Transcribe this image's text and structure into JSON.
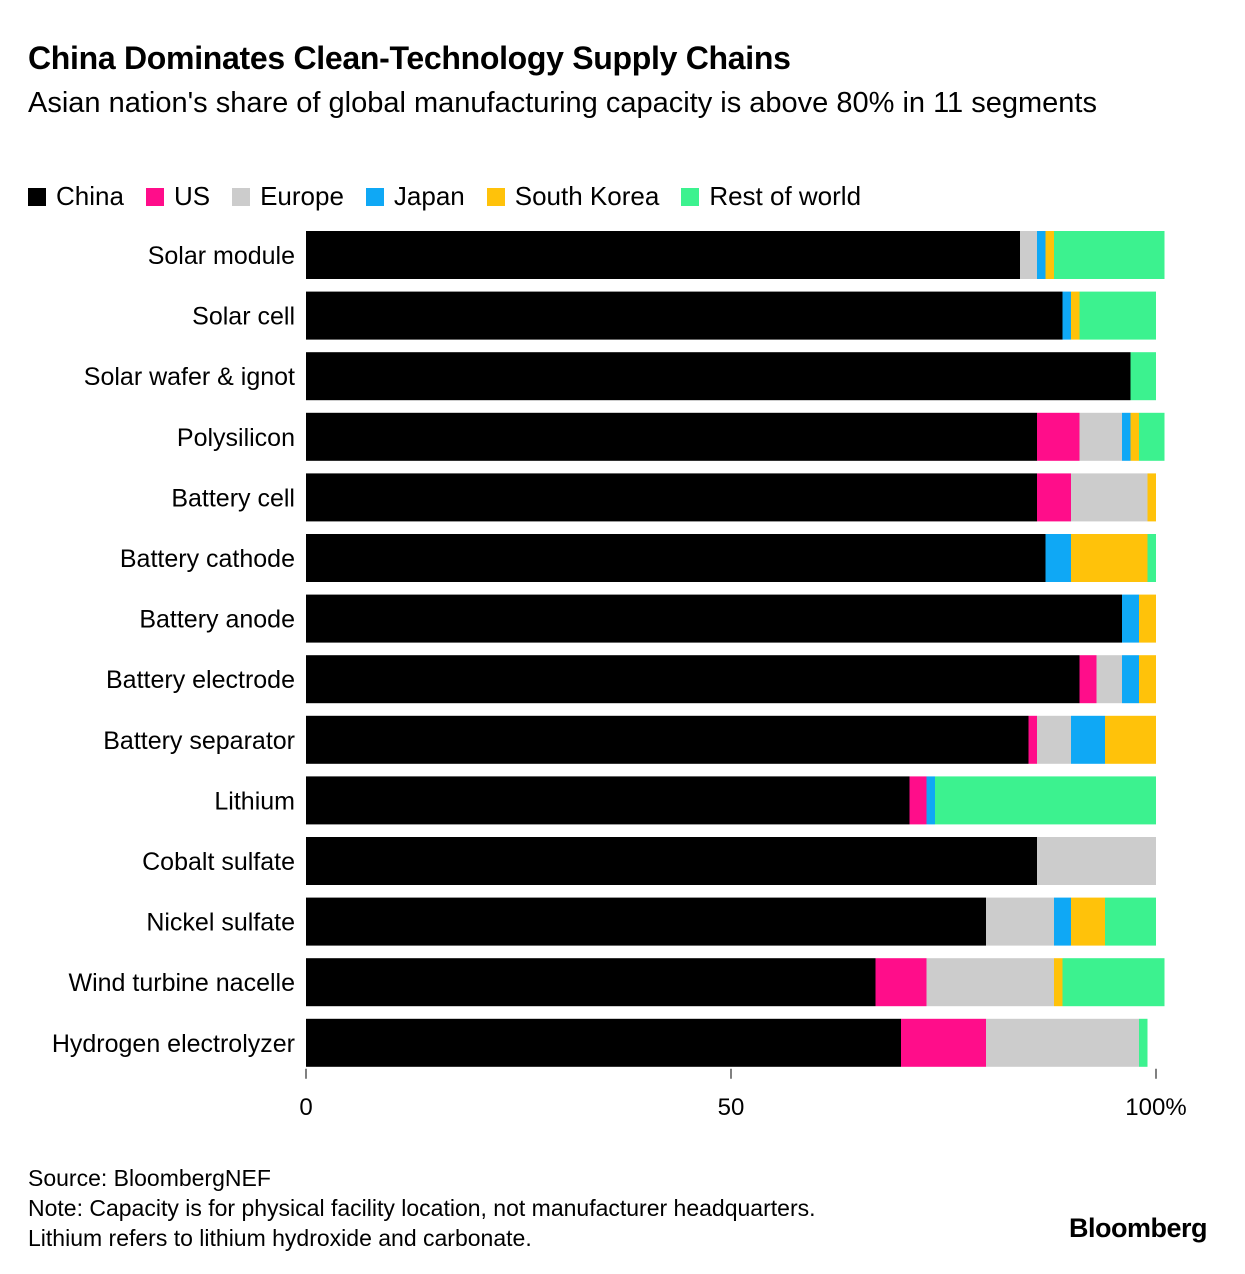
{
  "title": "China Dominates Clean-Technology Supply Chains",
  "subtitle": "Asian nation's share of global manufacturing capacity is above 80% in 11 segments",
  "colors": {
    "China": "#000000",
    "US": "#ff0d8a",
    "Europe": "#cccccc",
    "Japan": "#0fa8f5",
    "South Korea": "#ffc20a",
    "Rest of world": "#3cf28f"
  },
  "chart_data": {
    "type": "bar",
    "orientation": "horizontal",
    "stacked": true,
    "categories": [
      "Solar module",
      "Solar cell",
      "Solar wafer & ignot",
      "Polysilicon",
      "Battery cell",
      "Battery cathode",
      "Battery anode",
      "Battery electrode",
      "Battery separator",
      "Lithium",
      "Cobalt sulfate",
      "Nickel sulfate",
      "Wind turbine nacelle",
      "Hydrogen electrolyzer"
    ],
    "series": [
      {
        "name": "China",
        "values": [
          84,
          89,
          97,
          86,
          86,
          87,
          96,
          91,
          85,
          71,
          86,
          80,
          67,
          70
        ]
      },
      {
        "name": "US",
        "values": [
          0,
          0,
          0,
          5,
          4,
          0,
          0,
          2,
          1,
          2,
          0,
          0,
          6,
          10
        ]
      },
      {
        "name": "Europe",
        "values": [
          2,
          0,
          0,
          5,
          9,
          0,
          0,
          3,
          4,
          0,
          14,
          8,
          15,
          18
        ]
      },
      {
        "name": "Japan",
        "values": [
          1,
          1,
          0,
          1,
          0,
          3,
          2,
          2,
          4,
          1,
          0,
          2,
          0,
          0
        ]
      },
      {
        "name": "South Korea",
        "values": [
          1,
          1,
          0,
          1,
          1,
          9,
          2,
          2,
          6,
          0,
          0,
          4,
          1,
          0
        ]
      },
      {
        "name": "Rest of world",
        "values": [
          13,
          9,
          3,
          3,
          0,
          1,
          0,
          0,
          0,
          26,
          0,
          6,
          12,
          1
        ]
      }
    ],
    "xlim": [
      0,
      100
    ],
    "xticks": [
      {
        "value": 0,
        "label": "0"
      },
      {
        "value": 50,
        "label": "50"
      },
      {
        "value": 100,
        "label": "100%"
      }
    ],
    "legend_position": "top-left"
  },
  "footer": {
    "source": "Source: BloombergNEF",
    "note1": "Note: Capacity is for physical facility location, not manufacturer headquarters.",
    "note2": "Lithium refers to lithium hydroxide and carbonate."
  },
  "brand": "Bloomberg"
}
